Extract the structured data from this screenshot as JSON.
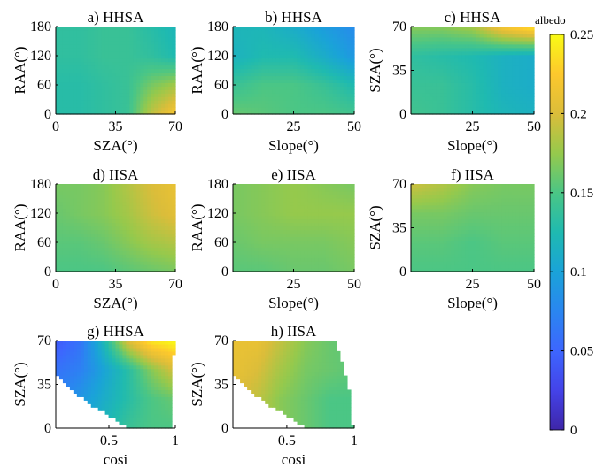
{
  "figure": {
    "colorbar": {
      "label": "albedo",
      "ticks": [
        "0",
        "0.05",
        "0.1",
        "0.15",
        "0.2",
        "0.25"
      ],
      "range": [
        0,
        0.25
      ]
    }
  },
  "chart_data": [
    {
      "type": "heatmap",
      "title": "a) HHSA",
      "xlabel": "SZA(°)",
      "ylabel": "RAA(°)",
      "xlim": [
        0,
        70
      ],
      "ylim": [
        0,
        180
      ],
      "xticks": [
        "0",
        "35",
        "70"
      ],
      "yticks": [
        "0",
        "60",
        "120",
        "180"
      ],
      "z_grid": [
        [
          0.13,
          0.13,
          0.135,
          0.14,
          0.19,
          0.22
        ],
        [
          0.13,
          0.13,
          0.135,
          0.14,
          0.165,
          0.18
        ],
        [
          0.135,
          0.135,
          0.14,
          0.14,
          0.135,
          0.125
        ],
        [
          0.135,
          0.135,
          0.14,
          0.14,
          0.13,
          0.12
        ]
      ]
    },
    {
      "type": "heatmap",
      "title": "b) HHSA",
      "xlabel": "Slope(°)",
      "ylabel": "RAA(°)",
      "xlim": [
        0,
        50
      ],
      "ylim": [
        0,
        180
      ],
      "xticks": [
        "25",
        "50"
      ],
      "yticks": [
        "0",
        "60",
        "120",
        "180"
      ],
      "z_grid": [
        [
          0.16,
          0.155,
          0.15,
          0.15,
          0.145
        ],
        [
          0.14,
          0.15,
          0.15,
          0.14,
          0.125
        ],
        [
          0.115,
          0.125,
          0.125,
          0.11,
          0.09
        ],
        [
          0.12,
          0.12,
          0.11,
          0.095,
          0.08
        ]
      ]
    },
    {
      "type": "heatmap",
      "title": "c) HHSA",
      "xlabel": "Slope(°)",
      "ylabel": "SZA(°)",
      "xlim": [
        0,
        50
      ],
      "ylim": [
        0,
        70
      ],
      "xticks": [
        "25",
        "50"
      ],
      "yticks": [
        "0",
        "35",
        "70"
      ],
      "z_grid": [
        [
          0.145,
          0.14,
          0.13,
          0.12,
          0.115
        ],
        [
          0.14,
          0.14,
          0.13,
          0.115,
          0.11
        ],
        [
          0.135,
          0.13,
          0.125,
          0.115,
          0.11
        ],
        [
          0.17,
          0.17,
          0.18,
          0.22,
          0.24
        ]
      ]
    },
    {
      "type": "heatmap",
      "title": "d) IISA",
      "xlabel": "SZA(°)",
      "ylabel": "RAA(°)",
      "xlim": [
        0,
        70
      ],
      "ylim": [
        0,
        180
      ],
      "xticks": [
        "0",
        "35",
        "70"
      ],
      "yticks": [
        "0",
        "60",
        "120",
        "180"
      ],
      "z_grid": [
        [
          0.15,
          0.15,
          0.15,
          0.155,
          0.16,
          0.165
        ],
        [
          0.155,
          0.155,
          0.16,
          0.17,
          0.18,
          0.185
        ],
        [
          0.16,
          0.165,
          0.17,
          0.18,
          0.195,
          0.205
        ],
        [
          0.165,
          0.165,
          0.17,
          0.185,
          0.2,
          0.21
        ]
      ]
    },
    {
      "type": "heatmap",
      "title": "e) IISA",
      "xlabel": "Slope(°)",
      "ylabel": "RAA(°)",
      "xlim": [
        0,
        50
      ],
      "ylim": [
        0,
        180
      ],
      "xticks": [
        "25",
        "50"
      ],
      "yticks": [
        "0",
        "60",
        "120",
        "180"
      ],
      "z_grid": [
        [
          0.155,
          0.155,
          0.16,
          0.16,
          0.165
        ],
        [
          0.16,
          0.165,
          0.165,
          0.165,
          0.17
        ],
        [
          0.165,
          0.17,
          0.175,
          0.175,
          0.175
        ],
        [
          0.165,
          0.17,
          0.175,
          0.17,
          0.165
        ]
      ]
    },
    {
      "type": "heatmap",
      "title": "f) IISA",
      "xlabel": "Slope(°)",
      "ylabel": "SZA(°)",
      "xlim": [
        0,
        50
      ],
      "ylim": [
        0,
        70
      ],
      "xticks": [
        "25",
        "50"
      ],
      "yticks": [
        "0",
        "35",
        "70"
      ],
      "z_grid": [
        [
          0.15,
          0.15,
          0.15,
          0.15,
          0.15
        ],
        [
          0.155,
          0.155,
          0.15,
          0.155,
          0.155
        ],
        [
          0.165,
          0.165,
          0.16,
          0.16,
          0.16
        ],
        [
          0.195,
          0.185,
          0.17,
          0.165,
          0.165
        ]
      ]
    },
    {
      "type": "heatmap",
      "title": "g) HHSA",
      "xlabel": "cosi",
      "ylabel": "SZA(°)",
      "xlim": [
        0.1,
        1
      ],
      "ylim": [
        0,
        70
      ],
      "xticks": [
        "0.5",
        "1"
      ],
      "yticks": [
        "0",
        "35",
        "70"
      ],
      "valid_region_cosi_max_by_sza": [
        [
          0,
          0.65
        ],
        [
          10,
          0.5
        ],
        [
          20,
          0.35
        ],
        [
          30,
          0.22
        ],
        [
          40,
          0.12
        ],
        [
          45,
          0.1
        ]
      ],
      "valid_region_right_edge_by_sza": [
        [
          0,
          0.97
        ],
        [
          40,
          0.97
        ],
        [
          55,
          0.98
        ],
        [
          70,
          1.0
        ]
      ],
      "z_grid": [
        [
          0.08,
          0.1,
          0.12,
          0.14,
          0.15,
          0.15
        ],
        [
          0.07,
          0.09,
          0.11,
          0.13,
          0.15,
          0.16
        ],
        [
          0.06,
          0.07,
          0.1,
          0.13,
          0.17,
          0.2
        ],
        [
          0.04,
          0.06,
          0.12,
          0.2,
          0.24,
          0.25
        ]
      ]
    },
    {
      "type": "heatmap",
      "title": "h) IISA",
      "xlabel": "cosi",
      "ylabel": "SZA(°)",
      "xlim": [
        0.1,
        1
      ],
      "ylim": [
        0,
        70
      ],
      "xticks": [
        "0.5",
        "1"
      ],
      "yticks": [
        "0",
        "35",
        "70"
      ],
      "valid_region_cosi_max_by_sza": [
        [
          0,
          0.65
        ],
        [
          10,
          0.5
        ],
        [
          20,
          0.35
        ],
        [
          30,
          0.22
        ],
        [
          40,
          0.12
        ],
        [
          45,
          0.1
        ]
      ],
      "valid_region_right_edge_by_sza": [
        [
          0,
          0.99
        ],
        [
          30,
          0.96
        ],
        [
          55,
          0.9
        ],
        [
          70,
          0.86
        ]
      ],
      "z_grid": [
        [
          0.2,
          0.19,
          0.17,
          0.16,
          0.15,
          0.15
        ],
        [
          0.2,
          0.19,
          0.17,
          0.16,
          0.15,
          0.15
        ],
        [
          0.21,
          0.2,
          0.18,
          0.165,
          0.16,
          0.155
        ],
        [
          0.21,
          0.21,
          0.19,
          0.17,
          0.16,
          0.155
        ]
      ]
    }
  ]
}
